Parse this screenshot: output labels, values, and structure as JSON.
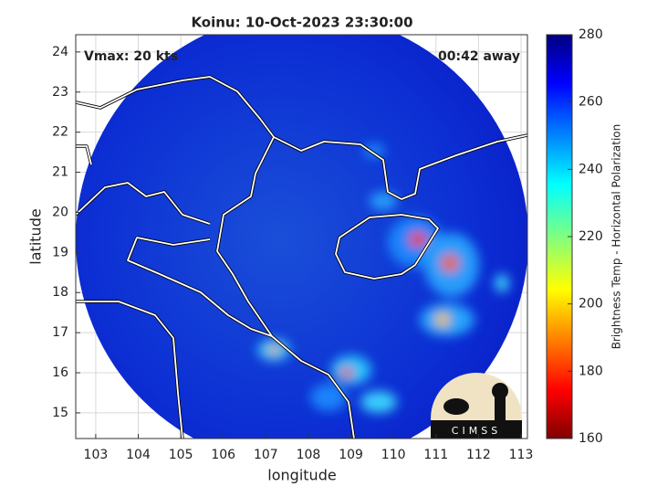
{
  "chart_data": {
    "type": "map",
    "title": "Koinu: 10-Oct-2023 23:30:00",
    "annotations": [
      "Vmax: 20 kts",
      "00:42 away"
    ],
    "xlabel": "longitude",
    "ylabel": "latitude",
    "xlim": [
      102.53,
      113.15
    ],
    "xticks": [
      103,
      104,
      105,
      106,
      107,
      108,
      109,
      110,
      111,
      112,
      113
    ],
    "ylim": [
      14.36,
      24.43
    ],
    "yticks": [
      15,
      16,
      17,
      18,
      19,
      20,
      21,
      22,
      23,
      24
    ],
    "grid": true,
    "colorbar": {
      "label": "Brightness Temp - Horizontal Polarization",
      "lim": [
        160,
        280
      ],
      "ticks": [
        160,
        180,
        200,
        220,
        240,
        260,
        280
      ]
    },
    "logo": "CIMSS"
  }
}
